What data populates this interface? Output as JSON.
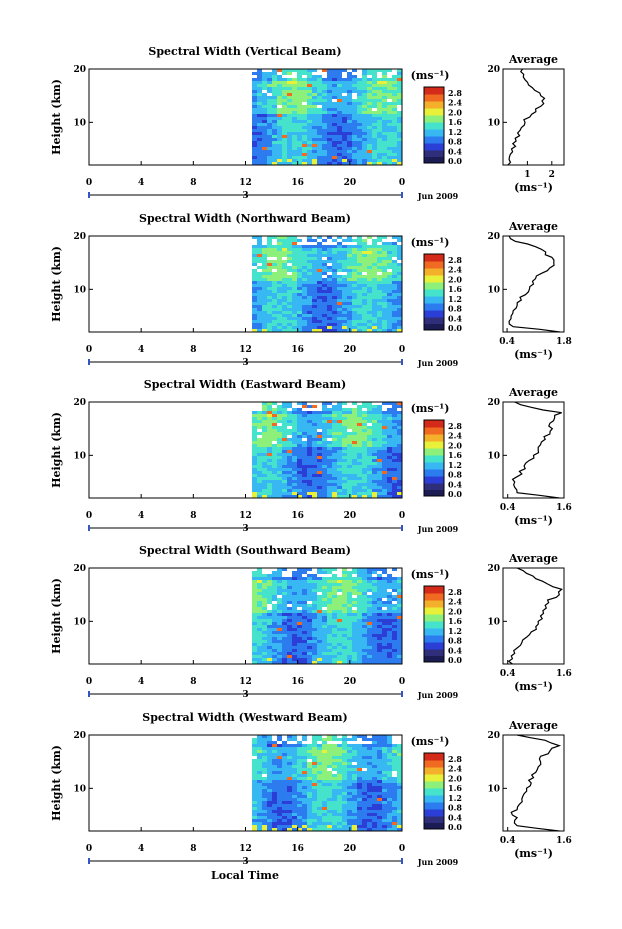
{
  "figure": {
    "xlabel": "Local Time",
    "ylabel": "Height (km)",
    "date_label": "Jun 2009",
    "day_marker": "3",
    "colorbar_unit": "(ms⁻¹)",
    "avg_title": "Average",
    "avg_xlabel": "(ms⁻¹)",
    "colormap": [
      "#2e2e7a",
      "#2b3fd6",
      "#2c7cf0",
      "#38b8f2",
      "#46e3cc",
      "#8cf07a",
      "#e8f03a",
      "#f4b02a",
      "#f06a22",
      "#d42a1a"
    ]
  },
  "chart_data": [
    {
      "type": "heatmap",
      "title": "Spectral Width (Vertical Beam)",
      "x_ticks": [
        "0",
        "4",
        "8",
        "12",
        "16",
        "20",
        "0"
      ],
      "y_ticks": [
        "20",
        "10"
      ],
      "xlim": [
        0,
        24
      ],
      "ylim": [
        2,
        20
      ],
      "data_start_hour": 12.5,
      "colorbar": {
        "ticks": [
          "2.8",
          "2.4",
          "2.0",
          "1.6",
          "1.2",
          "0.8",
          "0.4",
          "0.0"
        ],
        "range": [
          0,
          2.8
        ]
      },
      "average": {
        "xlim": [
          0,
          2.5
        ],
        "x_ticks": [
          "1",
          "2"
        ],
        "y_ticks": [
          "20",
          "10"
        ],
        "height": [
          2,
          3,
          4,
          5,
          6,
          7,
          8,
          9,
          10,
          11,
          12,
          13,
          14,
          15,
          16,
          17,
          18,
          19,
          20
        ],
        "value": [
          0.2,
          0.25,
          0.3,
          0.35,
          0.4,
          0.5,
          0.6,
          0.75,
          0.9,
          1.1,
          1.35,
          1.55,
          1.6,
          1.55,
          1.3,
          1.05,
          0.9,
          0.85,
          0.8
        ]
      }
    },
    {
      "type": "heatmap",
      "title": "Spectral Width (Northward Beam)",
      "x_ticks": [
        "0",
        "4",
        "8",
        "12",
        "16",
        "20",
        "0"
      ],
      "y_ticks": [
        "20",
        "10"
      ],
      "xlim": [
        0,
        24
      ],
      "ylim": [
        2,
        20
      ],
      "data_start_hour": 12.5,
      "colorbar": {
        "ticks": [
          "2.8",
          "2.4",
          "2.0",
          "1.6",
          "1.2",
          "0.8",
          "0.4",
          "0.0"
        ],
        "range": [
          0,
          2.8
        ]
      },
      "average": {
        "xlim": [
          0.3,
          1.8
        ],
        "x_ticks": [
          "0.4",
          "1.8"
        ],
        "y_ticks": [
          "20",
          "10"
        ],
        "height": [
          2,
          3,
          4,
          5,
          6,
          7,
          8,
          9,
          10,
          11,
          12,
          13,
          14,
          15,
          16,
          17,
          18,
          19,
          20
        ],
        "value": [
          1.7,
          0.55,
          0.45,
          0.5,
          0.55,
          0.65,
          0.75,
          0.85,
          0.95,
          1.05,
          1.1,
          1.25,
          1.45,
          1.55,
          1.5,
          1.35,
          1.1,
          0.6,
          0.45
        ]
      }
    },
    {
      "type": "heatmap",
      "title": "Spectral Width (Eastward Beam)",
      "x_ticks": [
        "0",
        "4",
        "8",
        "12",
        "16",
        "20",
        "0"
      ],
      "y_ticks": [
        "20",
        "10"
      ],
      "xlim": [
        0,
        24
      ],
      "ylim": [
        2,
        20
      ],
      "data_start_hour": 12.5,
      "colorbar": {
        "ticks": [
          "2.8",
          "2.4",
          "2.0",
          "1.6",
          "1.2",
          "0.8",
          "0.4",
          "0.0"
        ],
        "range": [
          0,
          2.8
        ]
      },
      "average": {
        "xlim": [
          0.3,
          1.6
        ],
        "x_ticks": [
          "0.4",
          "1.6"
        ],
        "y_ticks": [
          "20",
          "10"
        ],
        "height": [
          2,
          3,
          4,
          5,
          6,
          7,
          8,
          9,
          10,
          11,
          12,
          13,
          14,
          15,
          16,
          17,
          18,
          19,
          20
        ],
        "value": [
          1.5,
          0.6,
          0.55,
          0.55,
          0.6,
          0.65,
          0.75,
          0.85,
          0.95,
          1.05,
          1.1,
          1.2,
          1.3,
          1.35,
          1.3,
          1.4,
          1.55,
          0.9,
          0.55
        ]
      }
    },
    {
      "type": "heatmap",
      "title": "Spectral Width (Southward Beam)",
      "x_ticks": [
        "0",
        "4",
        "8",
        "12",
        "16",
        "20",
        "0"
      ],
      "y_ticks": [
        "20",
        "10"
      ],
      "xlim": [
        0,
        24
      ],
      "ylim": [
        2,
        20
      ],
      "data_start_hour": 12.5,
      "colorbar": {
        "ticks": [
          "2.8",
          "2.4",
          "2.0",
          "1.6",
          "1.2",
          "0.8",
          "0.4",
          "0.0"
        ],
        "range": [
          0,
          2.8
        ]
      },
      "average": {
        "xlim": [
          0.3,
          1.6
        ],
        "x_ticks": [
          "0.4",
          "1.6"
        ],
        "y_ticks": [
          "20",
          "10"
        ],
        "height": [
          2,
          3,
          4,
          5,
          6,
          7,
          8,
          9,
          10,
          11,
          12,
          13,
          14,
          15,
          16,
          17,
          18,
          19,
          20
        ],
        "value": [
          0.5,
          0.5,
          0.55,
          0.6,
          0.7,
          0.8,
          0.9,
          1.0,
          1.05,
          1.1,
          1.15,
          1.2,
          1.25,
          1.5,
          1.55,
          1.25,
          1.0,
          0.8,
          0.6
        ]
      }
    },
    {
      "type": "heatmap",
      "title": "Spectral Width (Westward Beam)",
      "x_ticks": [
        "0",
        "4",
        "8",
        "12",
        "16",
        "20",
        "0"
      ],
      "y_ticks": [
        "20",
        "10"
      ],
      "xlim": [
        0,
        24
      ],
      "ylim": [
        2,
        20
      ],
      "data_start_hour": 12.5,
      "colorbar": {
        "ticks": [
          "2.8",
          "2.4",
          "2.0",
          "1.6",
          "1.2",
          "0.8",
          "0.4",
          "0.0"
        ],
        "range": [
          0,
          2.8
        ]
      },
      "average": {
        "xlim": [
          0.3,
          1.6
        ],
        "x_ticks": [
          "0.4",
          "1.6"
        ],
        "y_ticks": [
          "20",
          "10"
        ],
        "height": [
          2,
          3,
          4,
          5,
          6,
          7,
          8,
          9,
          10,
          11,
          12,
          13,
          14,
          15,
          16,
          17,
          18,
          19,
          20
        ],
        "value": [
          1.5,
          0.6,
          0.55,
          0.5,
          0.6,
          0.65,
          0.7,
          0.75,
          0.8,
          0.9,
          0.95,
          1.0,
          1.05,
          1.1,
          1.1,
          1.3,
          1.5,
          1.2,
          0.6
        ]
      }
    }
  ]
}
